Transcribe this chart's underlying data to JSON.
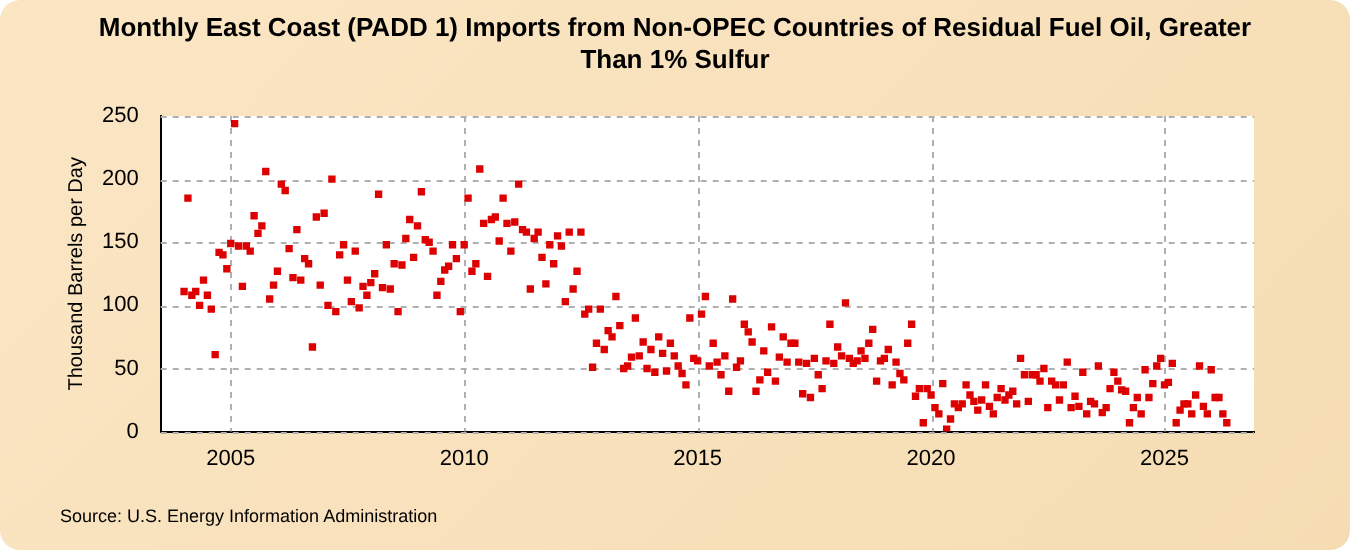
{
  "chart_data": {
    "type": "scatter",
    "title": "Monthly East Coast (PADD 1) Imports from Non-OPEC Countries of Residual Fuel Oil, Greater Than 1% Sulfur",
    "ylabel": "Thousand Barrels per Day",
    "annotations": [
      "Source: U.S. Energy Information Administration"
    ],
    "x": [
      "2004-01",
      "2004-02",
      "2004-03",
      "2004-04",
      "2004-05",
      "2004-06",
      "2004-07",
      "2004-08",
      "2004-09",
      "2004-10",
      "2004-11",
      "2004-12",
      "2005-01",
      "2005-02",
      "2005-03",
      "2005-04",
      "2005-05",
      "2005-06",
      "2005-07",
      "2005-08",
      "2005-09",
      "2005-10",
      "2005-11",
      "2005-12",
      "2006-01",
      "2006-02",
      "2006-03",
      "2006-04",
      "2006-05",
      "2006-06",
      "2006-07",
      "2006-08",
      "2006-09",
      "2006-10",
      "2006-11",
      "2006-12",
      "2007-01",
      "2007-02",
      "2007-03",
      "2007-04",
      "2007-05",
      "2007-06",
      "2007-07",
      "2007-08",
      "2007-09",
      "2007-10",
      "2007-11",
      "2007-12",
      "2008-01",
      "2008-02",
      "2008-03",
      "2008-04",
      "2008-05",
      "2008-06",
      "2008-07",
      "2008-08",
      "2008-09",
      "2008-10",
      "2008-11",
      "2008-12",
      "2009-01",
      "2009-02",
      "2009-03",
      "2009-04",
      "2009-05",
      "2009-06",
      "2009-07",
      "2009-08",
      "2009-09",
      "2009-10",
      "2009-11",
      "2009-12",
      "2010-01",
      "2010-02",
      "2010-03",
      "2010-04",
      "2010-05",
      "2010-06",
      "2010-07",
      "2010-08",
      "2010-09",
      "2010-10",
      "2010-11",
      "2010-12",
      "2011-01",
      "2011-02",
      "2011-03",
      "2011-04",
      "2011-05",
      "2011-06",
      "2011-07",
      "2011-08",
      "2011-09",
      "2011-10",
      "2011-11",
      "2011-12",
      "2012-01",
      "2012-02",
      "2012-03",
      "2012-04",
      "2012-05",
      "2012-06",
      "2012-07",
      "2012-08",
      "2012-09",
      "2012-10",
      "2012-11",
      "2012-12",
      "2013-01",
      "2013-02",
      "2013-03",
      "2013-04",
      "2013-05",
      "2013-06",
      "2013-07",
      "2013-08",
      "2013-09",
      "2013-10",
      "2013-11",
      "2013-12",
      "2014-01",
      "2014-02",
      "2014-03",
      "2014-04",
      "2014-05",
      "2014-06",
      "2014-07",
      "2014-08",
      "2014-09",
      "2014-10",
      "2014-11",
      "2014-12",
      "2015-01",
      "2015-02",
      "2015-03",
      "2015-04",
      "2015-05",
      "2015-06",
      "2015-07",
      "2015-08",
      "2015-09",
      "2015-10",
      "2015-11",
      "2015-12",
      "2016-01",
      "2016-02",
      "2016-03",
      "2016-04",
      "2016-05",
      "2016-06",
      "2016-07",
      "2016-08",
      "2016-09",
      "2016-10",
      "2016-11",
      "2016-12",
      "2017-01",
      "2017-02",
      "2017-03",
      "2017-04",
      "2017-05",
      "2017-06",
      "2017-07",
      "2017-08",
      "2017-09",
      "2017-10",
      "2017-11",
      "2017-12",
      "2018-01",
      "2018-02",
      "2018-03",
      "2018-04",
      "2018-05",
      "2018-06",
      "2018-07",
      "2018-08",
      "2018-09",
      "2018-10",
      "2018-11",
      "2018-12",
      "2019-01",
      "2019-02",
      "2019-03",
      "2019-04",
      "2019-05",
      "2019-06",
      "2019-07",
      "2019-08",
      "2019-09",
      "2019-10",
      "2019-11",
      "2019-12",
      "2020-01",
      "2020-02",
      "2020-03",
      "2020-04",
      "2020-05",
      "2020-06",
      "2020-07",
      "2020-08",
      "2020-09",
      "2020-10",
      "2020-11",
      "2020-12",
      "2021-01",
      "2021-02",
      "2021-03",
      "2021-04",
      "2021-05",
      "2021-06",
      "2021-07",
      "2021-08",
      "2021-09",
      "2021-10",
      "2021-11",
      "2021-12",
      "2022-01",
      "2022-02",
      "2022-03",
      "2022-04",
      "2022-05",
      "2022-06",
      "2022-07",
      "2022-08",
      "2022-09",
      "2022-10",
      "2022-11",
      "2022-12",
      "2023-01",
      "2023-02",
      "2023-03",
      "2023-04",
      "2023-05",
      "2023-06",
      "2023-07",
      "2023-08",
      "2023-09",
      "2023-10",
      "2023-11",
      "2023-12",
      "2024-01",
      "2024-02",
      "2024-03",
      "2024-04",
      "2024-05",
      "2024-06",
      "2024-07",
      "2024-08",
      "2024-09",
      "2024-10",
      "2024-11",
      "2024-12",
      "2025-01",
      "2025-02",
      "2025-03",
      "2025-04",
      "2025-05",
      "2025-06",
      "2025-07",
      "2025-08",
      "2025-09",
      "2025-10",
      "2025-11",
      "2025-12",
      "2026-01",
      "2026-02",
      "2026-03",
      "2026-04",
      "2026-05"
    ],
    "series": [
      {
        "color": "#dd0000",
        "values": [
          111,
          185,
          108,
          111,
          100,
          120,
          108,
          97,
          61,
          142,
          140,
          129,
          149,
          244,
          147,
          115,
          147,
          143,
          171,
          157,
          163,
          206,
          105,
          116,
          127,
          196,
          191,
          145,
          122,
          160,
          120,
          137,
          133,
          67,
          170,
          116,
          173,
          100,
          200,
          95,
          140,
          148,
          120,
          103,
          143,
          98,
          115,
          108,
          118,
          125,
          188,
          114,
          148,
          113,
          133,
          95,
          132,
          153,
          168,
          138,
          163,
          190,
          152,
          150,
          143,
          108,
          119,
          128,
          131,
          148,
          137,
          95,
          148,
          185,
          127,
          133,
          208,
          165,
          123,
          168,
          170,
          151,
          185,
          165,
          143,
          166,
          196,
          160,
          158,
          113,
          153,
          158,
          138,
          117,
          148,
          133,
          155,
          147,
          103,
          158,
          113,
          127,
          158,
          93,
          97,
          51,
          70,
          97,
          65,
          80,
          75,
          107,
          84,
          50,
          52,
          59,
          90,
          60,
          71,
          50,
          65,
          47,
          75,
          62,
          48,
          70,
          60,
          52,
          46,
          37,
          90,
          58,
          56,
          93,
          107,
          52,
          70,
          55,
          45,
          60,
          32,
          105,
          51,
          56,
          85,
          79,
          71,
          32,
          41,
          64,
          47,
          83,
          40,
          59,
          75,
          55,
          70,
          70,
          55,
          30,
          54,
          27,
          58,
          45,
          34,
          56,
          85,
          54,
          67,
          60,
          102,
          58,
          54,
          56,
          64,
          58,
          70,
          81,
          40,
          56,
          58,
          65,
          37,
          55,
          46,
          41,
          70,
          85,
          28,
          34,
          7,
          34,
          29,
          19,
          14,
          38,
          2,
          10,
          22,
          19,
          22,
          37,
          29,
          24,
          17,
          25,
          37,
          20,
          14,
          27,
          34,
          25,
          29,
          32,
          22,
          58,
          45,
          24,
          45,
          45,
          40,
          50,
          19,
          40,
          37,
          25,
          37,
          55,
          19,
          28,
          20,
          47,
          14,
          24,
          22,
          52,
          15,
          19,
          34,
          47,
          40,
          33,
          32,
          7,
          19,
          27,
          14,
          49,
          27,
          38,
          52,
          58,
          37,
          39,
          54,
          7,
          17,
          22,
          22,
          14,
          29,
          52,
          20,
          14,
          49,
          27,
          27,
          14,
          7
        ]
      }
    ],
    "ylim": [
      0,
      250
    ],
    "yticks": [
      0,
      50,
      100,
      150,
      200,
      250
    ],
    "xlim": [
      "2003-07",
      "2026-12"
    ],
    "xticks": [
      {
        "value": "2005",
        "label": "2005"
      },
      {
        "value": "2010",
        "label": "2010"
      },
      {
        "value": "2015",
        "label": "2015"
      },
      {
        "value": "2020",
        "label": "2020"
      },
      {
        "value": "2025",
        "label": "2025"
      }
    ],
    "grid": true,
    "marker": "square",
    "legend": false
  }
}
